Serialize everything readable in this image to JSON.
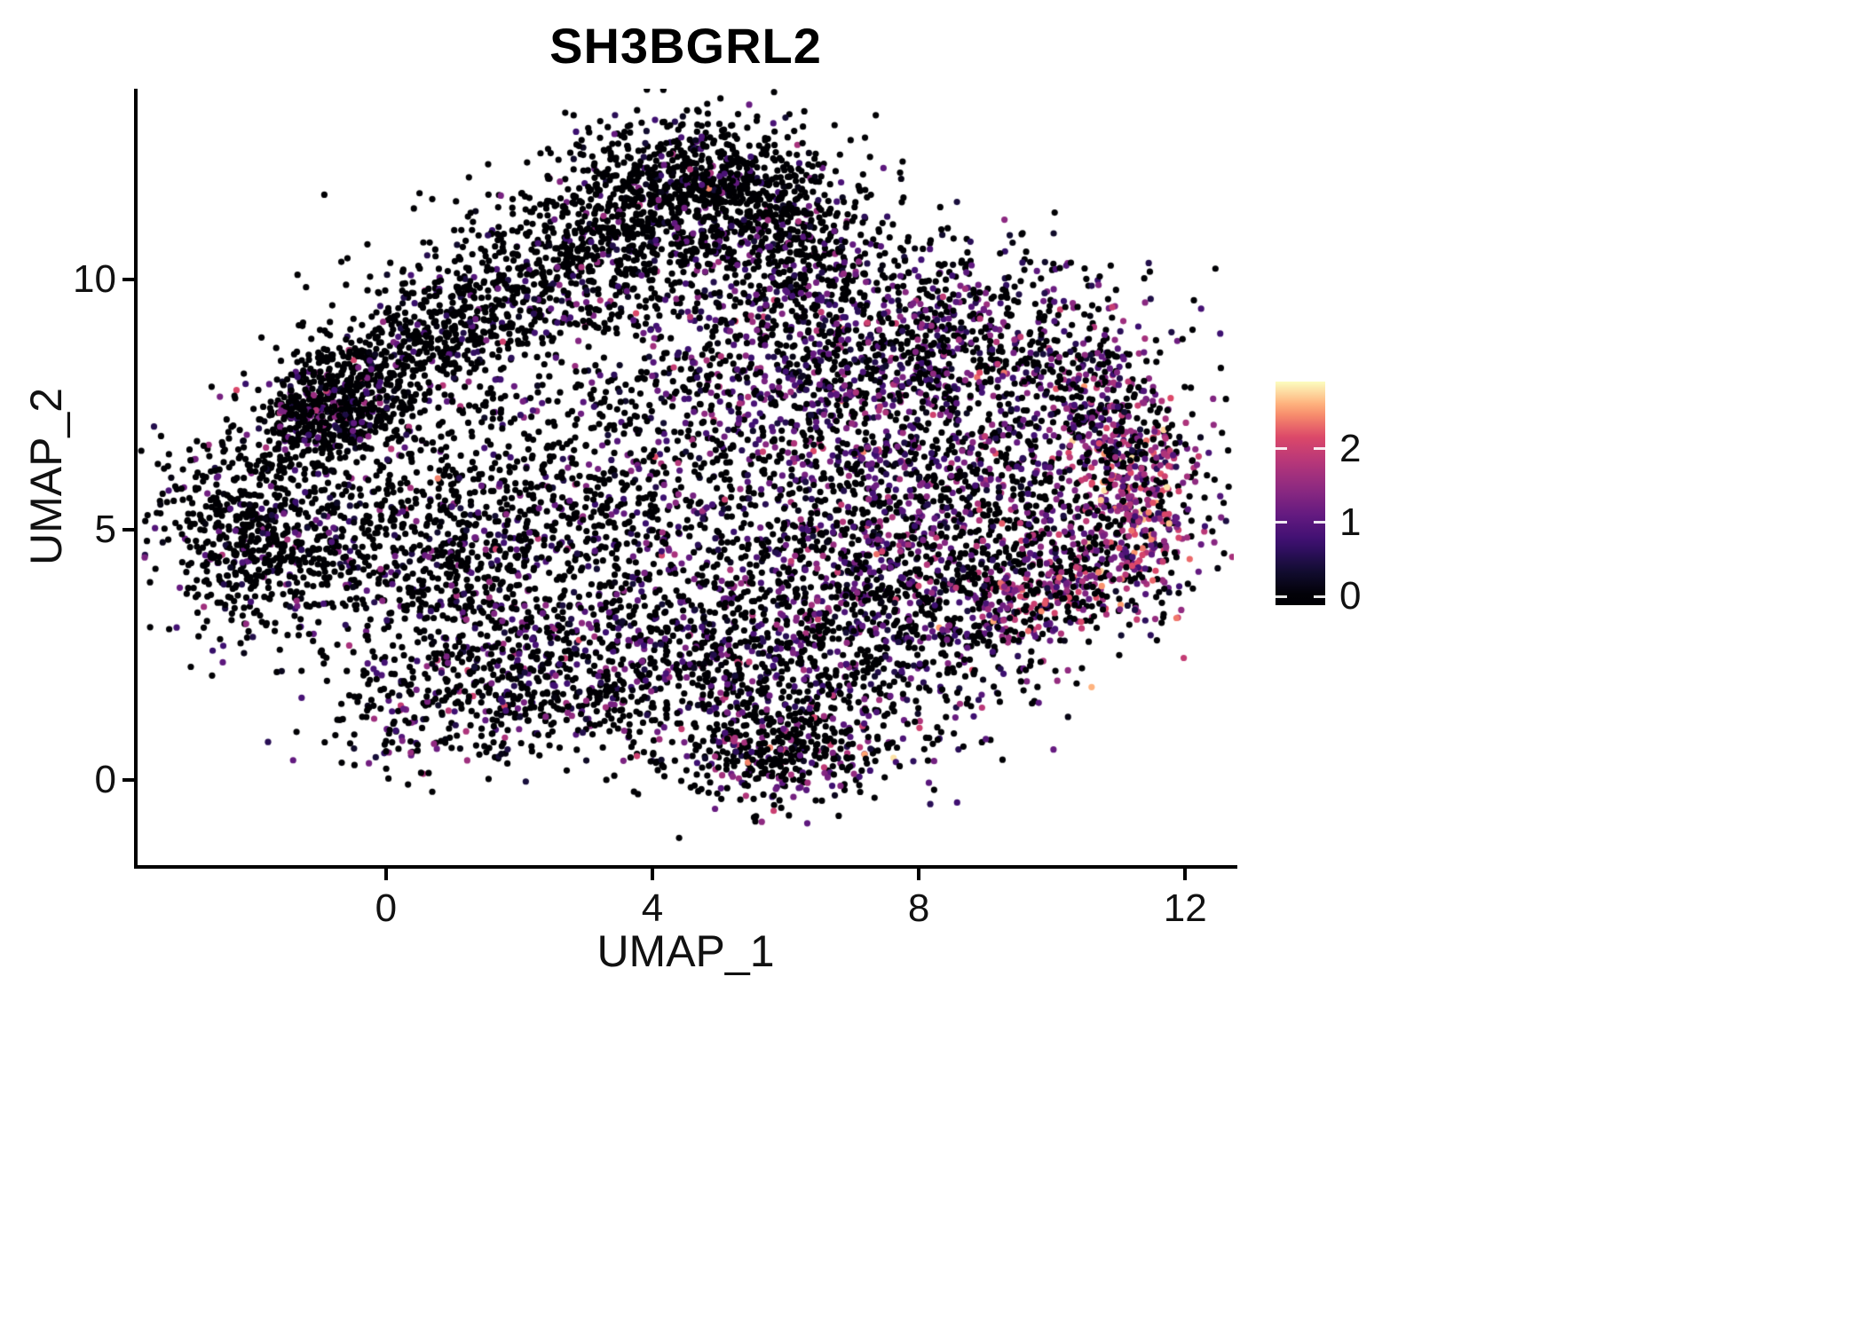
{
  "title": "SH3BGRL2",
  "axes": {
    "x": {
      "label": "UMAP_1",
      "ticks": [
        0,
        4,
        8,
        12
      ]
    },
    "y": {
      "label": "UMAP_2",
      "ticks": [
        0,
        5,
        10
      ]
    }
  },
  "colorbar": {
    "ticks": [
      0,
      1,
      2
    ],
    "bar_domain": [
      -0.12,
      2.91
    ],
    "position": "right"
  },
  "colors": {
    "background": "#ffffff",
    "axis_line": "#000000",
    "text": "#111111",
    "magma_stops": [
      [
        0.0,
        "#000004"
      ],
      [
        0.13,
        "#140e36"
      ],
      [
        0.25,
        "#3b0f70"
      ],
      [
        0.38,
        "#641a80"
      ],
      [
        0.5,
        "#8c2981"
      ],
      [
        0.63,
        "#b73779"
      ],
      [
        0.75,
        "#de4968"
      ],
      [
        0.875,
        "#fe9f6d"
      ],
      [
        1.0,
        "#fcfdbf"
      ]
    ]
  },
  "chart_data": {
    "type": "scatter",
    "title": "SH3BGRL2",
    "subtitle": "",
    "xlabel": "UMAP_1",
    "ylabel": "UMAP_2",
    "xlim": [
      -3.73,
      12.73
    ],
    "ylim": [
      -1.7,
      13.8
    ],
    "x_ticks": [
      0,
      4,
      8,
      12
    ],
    "y_ticks": [
      0,
      5,
      10
    ],
    "grid": "none",
    "legend_position": "right",
    "colorbar_ticks": [
      0,
      1,
      2
    ],
    "expression_color_domain": [
      0,
      2.9
    ],
    "point_radius_px": 3.6,
    "n_points_approx": 11100,
    "seed": 20240613,
    "clusters": [
      {
        "name": "top-apex",
        "n": 520,
        "cx": 4.4,
        "cy": 11.9,
        "sx": 1.0,
        "sy": 0.6,
        "rot": 0,
        "p0": 0.87,
        "mu": 0.8,
        "sigma": 0.45
      },
      {
        "name": "top-band",
        "n": 650,
        "cx": 3.2,
        "cy": 10.6,
        "sx": 1.6,
        "sy": 0.7,
        "rot": 25,
        "p0": 0.84,
        "mu": 0.8,
        "sigma": 0.45
      },
      {
        "name": "top-right-slope",
        "n": 400,
        "cx": 5.6,
        "cy": 11.6,
        "sx": 1.2,
        "sy": 0.55,
        "rot": -40,
        "p0": 0.8,
        "mu": 0.85,
        "sigma": 0.5
      },
      {
        "name": "upper-left-edge",
        "n": 650,
        "cx": 0.4,
        "cy": 8.6,
        "sx": 1.5,
        "sy": 0.6,
        "rot": 40,
        "p0": 0.85,
        "mu": 0.8,
        "sigma": 0.4
      },
      {
        "name": "left-knot",
        "n": 450,
        "cx": -0.85,
        "cy": 7.35,
        "sx": 0.55,
        "sy": 0.45,
        "rot": 30,
        "p0": 0.78,
        "mu": 0.95,
        "sigma": 0.55
      },
      {
        "name": "left-lobe",
        "n": 600,
        "cx": -2.0,
        "cy": 4.9,
        "sx": 0.75,
        "sy": 1.0,
        "rot": 10,
        "p0": 0.84,
        "mu": 0.8,
        "sigma": 0.45
      },
      {
        "name": "left-mid",
        "n": 550,
        "cx": 0.6,
        "cy": 4.6,
        "sx": 1.2,
        "sy": 1.1,
        "rot": 0,
        "p0": 0.8,
        "mu": 0.8,
        "sigma": 0.45
      },
      {
        "name": "mid-scatter",
        "n": 650,
        "cx": 3.0,
        "cy": 6.0,
        "sx": 1.7,
        "sy": 1.6,
        "rot": 0,
        "p0": 0.78,
        "mu": 0.85,
        "sigma": 0.5
      },
      {
        "name": "center-band",
        "n": 950,
        "cx": 7.3,
        "cy": 7.3,
        "sx": 2.0,
        "sy": 1.1,
        "rot": -30,
        "p0": 0.5,
        "mu": 1.05,
        "sigma": 0.5
      },
      {
        "name": "upper-right",
        "n": 600,
        "cx": 8.8,
        "cy": 8.9,
        "sx": 1.5,
        "sy": 0.9,
        "rot": -10,
        "p0": 0.6,
        "mu": 1.0,
        "sigma": 0.5
      },
      {
        "name": "right-upper-edge",
        "n": 280,
        "cx": 10.9,
        "cy": 7.3,
        "sx": 1.0,
        "sy": 0.5,
        "rot": -55,
        "p0": 0.42,
        "mu": 1.35,
        "sigma": 0.55
      },
      {
        "name": "right-tip",
        "n": 300,
        "cx": 11.2,
        "cy": 5.6,
        "sx": 0.45,
        "sy": 1.1,
        "rot": 8,
        "p0": 0.27,
        "mu": 1.65,
        "sigma": 0.5
      },
      {
        "name": "right-mid",
        "n": 480,
        "cx": 9.2,
        "cy": 4.6,
        "sx": 1.2,
        "sy": 0.95,
        "rot": 0,
        "p0": 0.55,
        "mu": 1.1,
        "sigma": 0.5
      },
      {
        "name": "right-low-arc",
        "n": 300,
        "cx": 10.2,
        "cy": 3.9,
        "sx": 0.9,
        "sy": 0.45,
        "rot": 35,
        "p0": 0.42,
        "mu": 1.45,
        "sigma": 0.55
      },
      {
        "name": "bottom-band",
        "n": 1000,
        "cx": 4.6,
        "cy": 2.3,
        "sx": 2.1,
        "sy": 0.95,
        "rot": -5,
        "p0": 0.67,
        "mu": 0.9,
        "sigma": 0.45
      },
      {
        "name": "bottom-right",
        "n": 460,
        "cx": 7.6,
        "cy": 3.1,
        "sx": 1.2,
        "sy": 0.8,
        "rot": -15,
        "p0": 0.55,
        "mu": 1.0,
        "sigma": 0.5
      },
      {
        "name": "bottom-lobe",
        "n": 430,
        "cx": 5.9,
        "cy": 0.6,
        "sx": 0.85,
        "sy": 0.5,
        "rot": 10,
        "p0": 0.75,
        "mu": 1.1,
        "sigma": 0.6
      },
      {
        "name": "lower-left-tail",
        "n": 330,
        "cx": 1.4,
        "cy": 1.6,
        "sx": 1.1,
        "sy": 0.75,
        "rot": 20,
        "p0": 0.75,
        "mu": 0.9,
        "sigma": 0.5
      },
      {
        "name": "sparse-fill",
        "n": 680,
        "cx": 4.5,
        "cy": 6.0,
        "sx": 3.3,
        "sy": 2.4,
        "rot": 0,
        "p0": 0.72,
        "mu": 0.85,
        "sigma": 0.5
      },
      {
        "name": "mid-right-fill",
        "n": 420,
        "cx": 6.5,
        "cy": 5.0,
        "sx": 1.6,
        "sy": 1.2,
        "rot": 0,
        "p0": 0.6,
        "mu": 0.95,
        "sigma": 0.5
      },
      {
        "name": "upper-mid",
        "n": 450,
        "cx": 5.8,
        "cy": 9.8,
        "sx": 1.4,
        "sy": 1.0,
        "rot": 0,
        "p0": 0.72,
        "mu": 0.9,
        "sigma": 0.5
      }
    ]
  }
}
